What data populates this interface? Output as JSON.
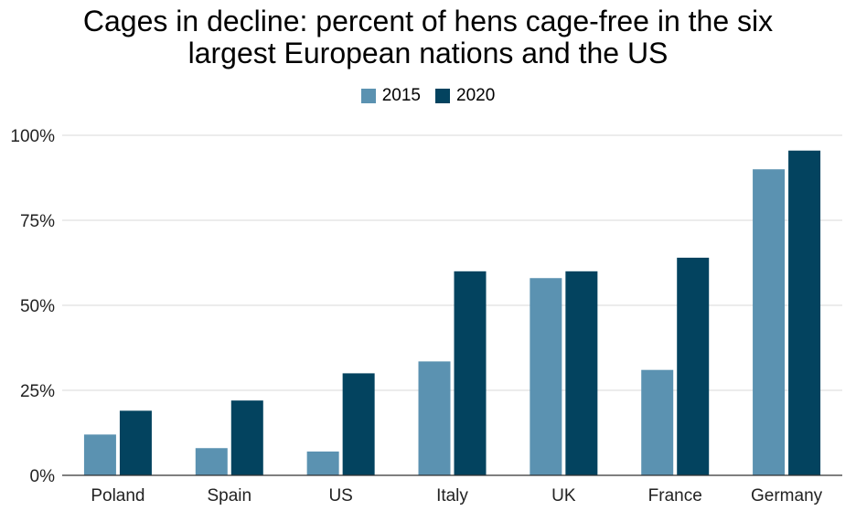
{
  "chart_data": {
    "type": "bar",
    "title_line1": "Cages in decline: percent of hens cage-free in the six",
    "title_line2": "largest European nations and the US",
    "categories": [
      "Poland",
      "Spain",
      "US",
      "Italy",
      "UK",
      "France",
      "Germany"
    ],
    "series": [
      {
        "name": "2015",
        "color": "#5b92b1",
        "values": [
          12,
          8,
          7,
          33.5,
          58,
          31,
          90
        ]
      },
      {
        "name": "2020",
        "color": "#03435f",
        "values": [
          19,
          22,
          30,
          60,
          60,
          64,
          95.5
        ]
      }
    ],
    "yticks": [
      "0%",
      "25%",
      "50%",
      "75%",
      "100%"
    ],
    "ylim": [
      0,
      100
    ],
    "grid": true,
    "legend_position": "top-center"
  }
}
